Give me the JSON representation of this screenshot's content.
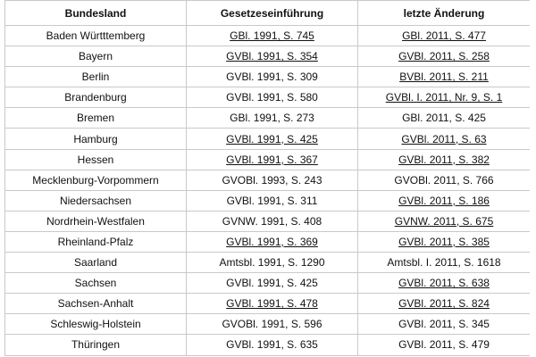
{
  "table": {
    "headers": [
      "Bundesland",
      "Gesetzeseinführung",
      "letzte Änderung"
    ],
    "rows": [
      {
        "state": "Baden Württtemberg",
        "intro": "GBl. 1991, S. 745",
        "intro_linked": true,
        "change": "GBl. 2011, S. 477",
        "change_linked": true
      },
      {
        "state": "Bayern",
        "intro": "GVBl. 1991, S. 354",
        "intro_linked": true,
        "change": "GVBl. 2011, S. 258",
        "change_linked": true
      },
      {
        "state": "Berlin",
        "intro": "GVBl. 1991, S. 309",
        "intro_linked": false,
        "change": "BVBl. 2011, S. 211",
        "change_linked": true
      },
      {
        "state": "Brandenburg",
        "intro": "GVBl. 1991, S. 580",
        "intro_linked": false,
        "change": "GVBl. I. 2011, Nr. 9, S. 1",
        "change_linked": true
      },
      {
        "state": "Bremen",
        "intro": "GBl. 1991, S. 273",
        "intro_linked": false,
        "change": "GBl. 2011, S. 425",
        "change_linked": false
      },
      {
        "state": "Hamburg",
        "intro": "GVBl. 1991, S. 425",
        "intro_linked": true,
        "change": "GVBl. 2011, S. 63",
        "change_linked": true
      },
      {
        "state": "Hessen",
        "intro": "GVBl. 1991, S. 367",
        "intro_linked": true,
        "change": "GVBl. 2011, S. 382",
        "change_linked": true
      },
      {
        "state": "Mecklenburg-Vorpommern",
        "intro": "GVOBl. 1993, S. 243",
        "intro_linked": false,
        "change": "GVOBl. 2011, S. 766",
        "change_linked": false
      },
      {
        "state": "Niedersachsen",
        "intro": "GVBl. 1991, S. 311",
        "intro_linked": false,
        "change": "GVBl. 2011, S. 186",
        "change_linked": true
      },
      {
        "state": "Nordrhein-Westfalen",
        "intro": "GVNW. 1991, S. 408",
        "intro_linked": false,
        "change": "GVNW. 2011, S. 675",
        "change_linked": true
      },
      {
        "state": "Rheinland-Pfalz",
        "intro": "GVBl. 1991, S. 369",
        "intro_linked": true,
        "change": "GVBl. 2011, S. 385",
        "change_linked": true
      },
      {
        "state": "Saarland",
        "intro": "Amtsbl. 1991, S. 1290",
        "intro_linked": false,
        "change": "Amtsbl. I. 2011, S. 1618",
        "change_linked": false
      },
      {
        "state": "Sachsen",
        "intro": "GVBl. 1991, S. 425",
        "intro_linked": false,
        "change": "GVBl. 2011, S. 638",
        "change_linked": true
      },
      {
        "state": "Sachsen-Anhalt",
        "intro": "GVBl. 1991, S. 478",
        "intro_linked": true,
        "change": "GVBl. 2011, S. 824",
        "change_linked": true
      },
      {
        "state": "Schleswig-Holstein",
        "intro": "GVOBl. 1991, S. 596",
        "intro_linked": false,
        "change": "GVBl. 2011, S. 345",
        "change_linked": false
      },
      {
        "state": "Thüringen",
        "intro": "GVBl. 1991, S. 635",
        "intro_linked": false,
        "change": "GVBl. 2011, S. 479",
        "change_linked": false
      }
    ]
  },
  "colors": {
    "border": "#c9c9c9",
    "text": "#111111",
    "background": "#ffffff"
  }
}
